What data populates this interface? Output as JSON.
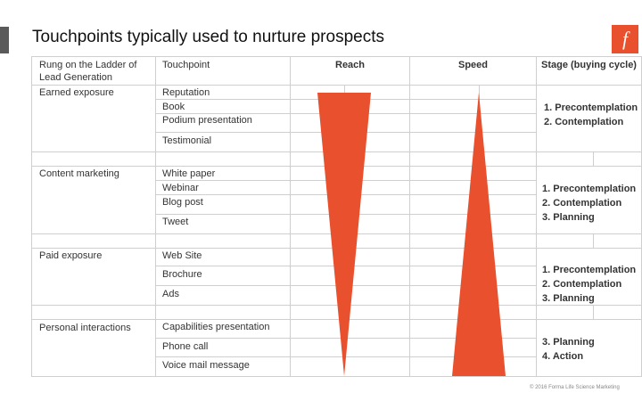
{
  "title": "Touchpoints typically used to nurture prospects",
  "logo_glyph": "f",
  "accent_color": "#e8502e",
  "headers": {
    "rung": [
      "Rung on the Ladder of",
      "Lead Generation"
    ],
    "touchpoint": "Touchpoint",
    "reach": "Reach",
    "speed": "Speed",
    "stage": "Stage (buying cycle)"
  },
  "groups": [
    {
      "rung": "Earned exposure",
      "touchpoints": [
        "Reputation",
        "Book",
        "Podium presentation",
        "Testimonial"
      ],
      "stages": [
        "1. Precontemplation",
        "2. Contemplation"
      ]
    },
    {
      "rung": "Content marketing",
      "touchpoints": [
        "White paper",
        "Webinar",
        "Blog post",
        "Tweet"
      ],
      "stages": [
        "1. Precontemplation",
        "2. Contemplation",
        "3. Planning"
      ]
    },
    {
      "rung": "Paid exposure",
      "touchpoints": [
        "Web Site",
        "Brochure",
        "Ads"
      ],
      "stages": [
        "1. Precontemplation",
        "2. Contemplation",
        "3. Planning"
      ]
    },
    {
      "rung": "Personal interactions",
      "touchpoints": [
        "Capabilities presentation",
        "Phone call",
        "Voice mail message"
      ],
      "stages": [
        "3. Planning",
        "4. Action"
      ]
    }
  ],
  "reach_shape": "wide-to-narrow-triangle",
  "speed_shape": "narrow-to-wide-triangle",
  "footer": "© 2016 Forma Life Science Marketing"
}
